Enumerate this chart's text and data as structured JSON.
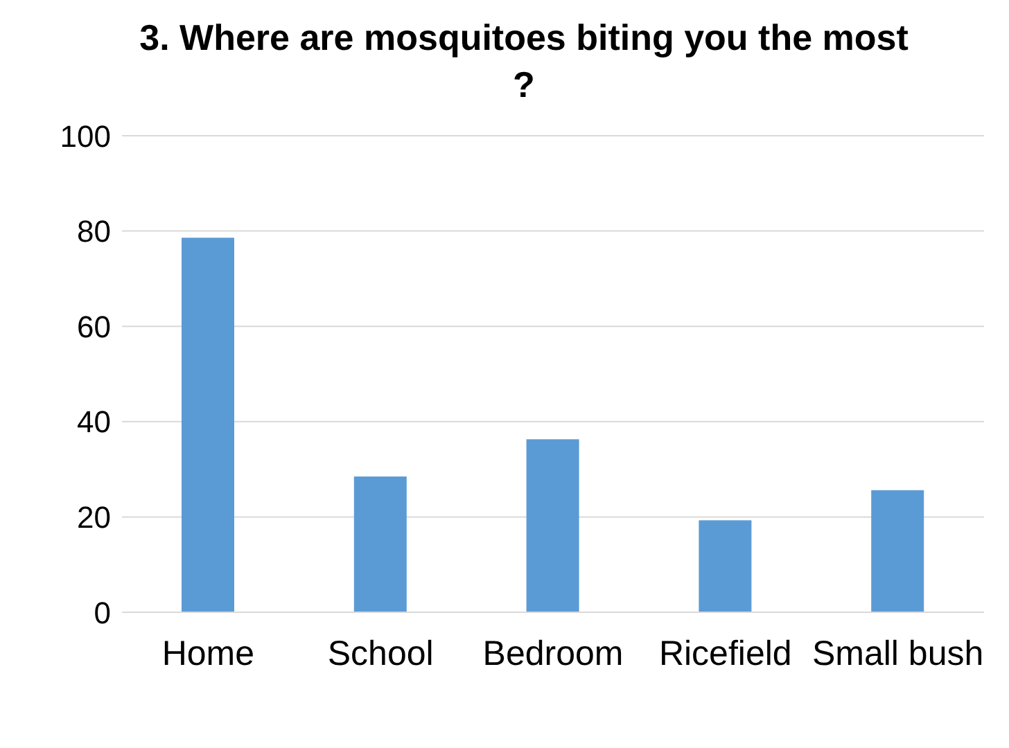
{
  "chart_data": {
    "type": "bar",
    "title": "3. Where are mosquitoes biting you the most ?",
    "categories": [
      "Home",
      "School",
      "Bedroom",
      "Ricefield",
      "Small bush"
    ],
    "values": [
      78.6,
      28.5,
      36.3,
      19.3,
      25.6
    ],
    "color": "#5b9bd5",
    "ylim": [
      0,
      100
    ],
    "yticks": [
      0,
      20,
      40,
      60,
      80,
      100
    ],
    "grid": "y"
  }
}
